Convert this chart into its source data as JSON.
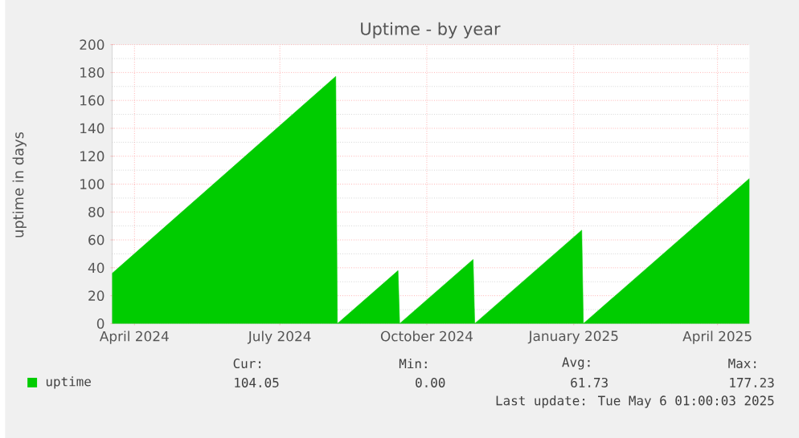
{
  "chart_data": {
    "type": "area",
    "title": "Uptime - by year",
    "ylabel": "uptime in days",
    "x": [
      "2024-04-02",
      "2024-08-20",
      "2024-08-21",
      "2024-09-28",
      "2024-09-29",
      "2024-11-14",
      "2024-11-15",
      "2025-01-21",
      "2025-01-22",
      "2025-05-06"
    ],
    "series": [
      {
        "name": "uptime",
        "color": "#00cc00",
        "values": [
          36,
          177.23,
          0,
          38,
          0,
          46,
          0,
          67,
          0,
          104.05
        ]
      }
    ],
    "xlim": [
      "2024-04-02",
      "2025-05-06"
    ],
    "xticks": [
      {
        "value": "2024-04-16",
        "label": "April 2024"
      },
      {
        "value": "2024-07-16",
        "label": "July 2024"
      },
      {
        "value": "2024-10-16",
        "label": "October 2024"
      },
      {
        "value": "2025-01-16",
        "label": "January 2025"
      },
      {
        "value": "2025-04-16",
        "label": "April 2025"
      }
    ],
    "ylim": [
      0,
      200
    ],
    "yticks": [
      0,
      20,
      40,
      60,
      80,
      100,
      120,
      140,
      160,
      180,
      200
    ],
    "grid": true,
    "legend": "bottom",
    "annotations": [
      "Cur:",
      "Min:",
      "Avg:",
      "Max:",
      "104.05",
      "0.00",
      "61.73",
      "177.23",
      "Last update: Tue May 6 01:00:03 2025"
    ]
  }
}
